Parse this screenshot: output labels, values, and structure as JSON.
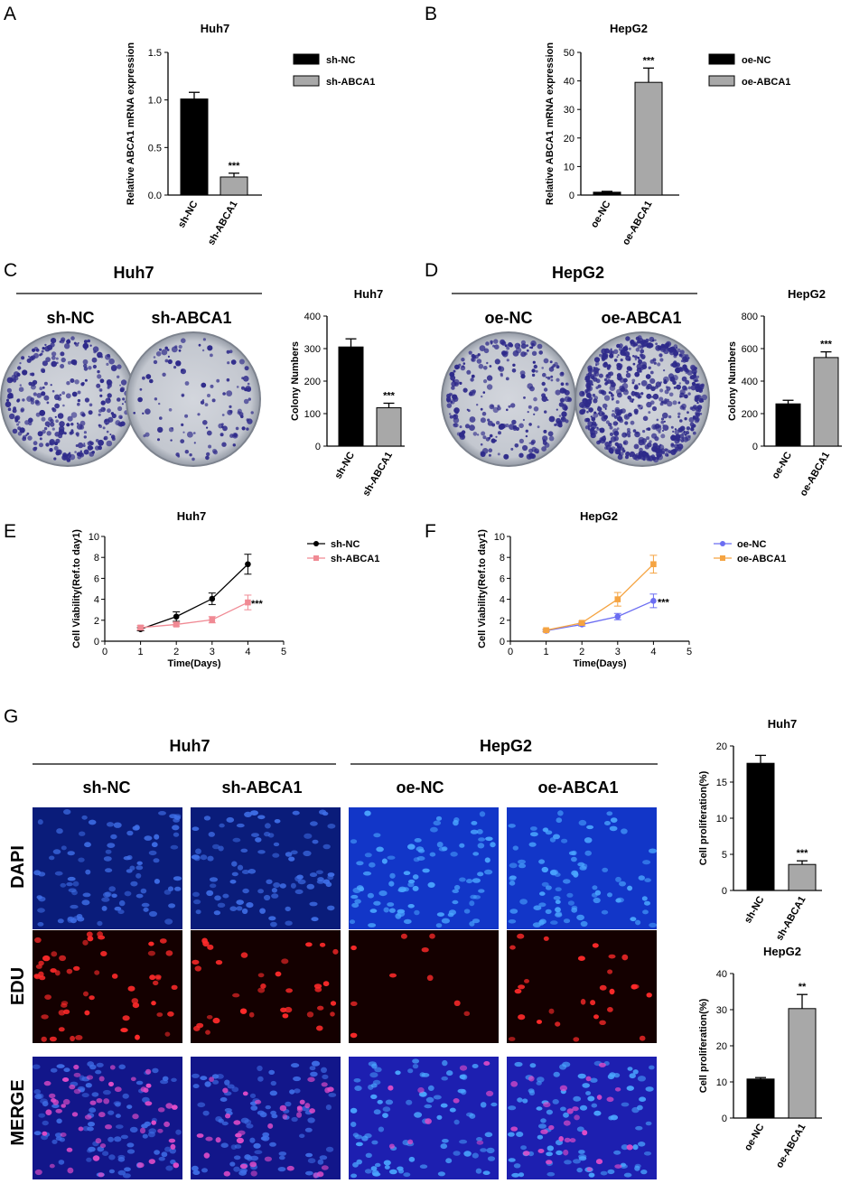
{
  "panel_labels": [
    "A",
    "B",
    "C",
    "D",
    "E",
    "F",
    "G"
  ],
  "colors": {
    "black_bar": "#000000",
    "gray_bar": "#a8a8a8",
    "pink": "#f08a94",
    "blue": "#6b6df2",
    "orange": "#f5a442",
    "dish_bg": "#c9ccd4",
    "colony": "#2e2a8a",
    "dapi_bg": "#0a1c7a",
    "edu_bg": "#140000",
    "merge_bg": "#12168a"
  },
  "chart_data": [
    {
      "id": "A",
      "type": "bar",
      "title": "Huh7",
      "ylabel": "Relative ABCA1 mRNA expression",
      "categories": [
        "sh-NC",
        "sh-ABCA1"
      ],
      "values": [
        1.01,
        0.19
      ],
      "errors": [
        0.07,
        0.04
      ],
      "ylim": [
        0,
        1.5
      ],
      "yticks": [
        "0.0",
        "0.5",
        "1.0",
        "1.5"
      ],
      "sig": [
        "",
        "***"
      ],
      "legend": [
        "sh-NC",
        "sh-ABCA1"
      ]
    },
    {
      "id": "B",
      "type": "bar",
      "title": "HepG2",
      "ylabel": "Relative ABCA1 mRNA expression",
      "categories": [
        "oe-NC",
        "oe-ABCA1"
      ],
      "values": [
        1.0,
        39.5
      ],
      "errors": [
        0.3,
        5.0
      ],
      "ylim": [
        0,
        50
      ],
      "yticks": [
        "0",
        "10",
        "20",
        "30",
        "40",
        "50"
      ],
      "sig": [
        "",
        "***"
      ],
      "legend": [
        "oe-NC",
        "oe-ABCA1"
      ]
    },
    {
      "id": "C",
      "type": "bar",
      "title": "Huh7",
      "ylabel": "Colony Numbers",
      "categories": [
        "sh-NC",
        "sh-ABCA1"
      ],
      "values": [
        305,
        118
      ],
      "errors": [
        25,
        14
      ],
      "ylim": [
        0,
        400
      ],
      "yticks": [
        "0",
        "100",
        "200",
        "300",
        "400"
      ],
      "sig": [
        "",
        "***"
      ],
      "legend": []
    },
    {
      "id": "D",
      "type": "bar",
      "title": "HepG2",
      "ylabel": "Colony Numbers",
      "categories": [
        "oe-NC",
        "oe-ABCA1"
      ],
      "values": [
        260,
        545
      ],
      "errors": [
        22,
        35
      ],
      "ylim": [
        0,
        800
      ],
      "yticks": [
        "0",
        "200",
        "400",
        "600",
        "800"
      ],
      "sig": [
        "",
        "***"
      ],
      "legend": []
    },
    {
      "id": "E",
      "type": "line",
      "title": "Huh7",
      "xlabel": "Time(Days)",
      "ylabel": "Cell Viability(Ref.to day1)",
      "x": [
        1,
        2,
        3,
        4
      ],
      "xlim": [
        0,
        5
      ],
      "ylim": [
        0,
        10
      ],
      "xticks": [
        "0",
        "1",
        "2",
        "3",
        "4",
        "5"
      ],
      "yticks": [
        "0",
        "2",
        "4",
        "6",
        "8",
        "10"
      ],
      "series": [
        {
          "name": "sh-NC",
          "values": [
            1.15,
            2.35,
            4.05,
            7.35
          ],
          "errors": [
            0.15,
            0.45,
            0.55,
            0.95
          ],
          "color": "#000000",
          "marker": "circle"
        },
        {
          "name": "sh-ABCA1",
          "values": [
            1.3,
            1.6,
            2.05,
            3.7
          ],
          "errors": [
            0.2,
            0.15,
            0.3,
            0.7
          ],
          "color": "#f08a94",
          "marker": "square"
        }
      ],
      "sig": "***"
    },
    {
      "id": "F",
      "type": "line",
      "title": "HepG2",
      "xlabel": "Time(Days)",
      "ylabel": "Cell Viability(Ref.to day1)",
      "x": [
        1,
        2,
        3,
        4
      ],
      "xlim": [
        0,
        5
      ],
      "ylim": [
        0,
        10
      ],
      "xticks": [
        "0",
        "1",
        "2",
        "3",
        "4",
        "5"
      ],
      "yticks": [
        "0",
        "2",
        "4",
        "6",
        "8",
        "10"
      ],
      "series": [
        {
          "name": "oe-NC",
          "values": [
            1.0,
            1.6,
            2.35,
            3.85
          ],
          "errors": [
            0.1,
            0.15,
            0.3,
            0.65
          ],
          "color": "#6b6df2",
          "marker": "circle"
        },
        {
          "name": "oe-ABCA1",
          "values": [
            1.05,
            1.75,
            4.0,
            7.35
          ],
          "errors": [
            0.1,
            0.15,
            0.65,
            0.85
          ],
          "color": "#f5a442",
          "marker": "square"
        }
      ],
      "sig": "***"
    },
    {
      "id": "G1",
      "type": "bar",
      "title": "Huh7",
      "ylabel": "Cell proliferation(%)",
      "categories": [
        "sh-NC",
        "sh-ABCA1"
      ],
      "values": [
        17.6,
        3.6
      ],
      "errors": [
        1.1,
        0.5
      ],
      "ylim": [
        0,
        20
      ],
      "yticks": [
        "0",
        "5",
        "10",
        "15",
        "20"
      ],
      "sig": [
        "",
        "***"
      ],
      "legend": []
    },
    {
      "id": "G2",
      "type": "bar",
      "title": "HepG2",
      "ylabel": "Cell proliferation(%)",
      "categories": [
        "oe-NC",
        "oe-ABCA1"
      ],
      "values": [
        10.8,
        30.3
      ],
      "errors": [
        0.4,
        3.9
      ],
      "ylim": [
        0,
        40
      ],
      "yticks": [
        "0",
        "10",
        "20",
        "30",
        "40"
      ],
      "sig": [
        "",
        "**"
      ],
      "legend": []
    }
  ],
  "colony_section": {
    "C": {
      "header": "Huh7",
      "labels": [
        "sh-NC",
        "sh-ABCA1"
      ],
      "density": [
        300,
        120
      ]
    },
    "D": {
      "header": "HepG2",
      "labels": [
        "oe-NC",
        "oe-ABCA1"
      ],
      "density": [
        260,
        620
      ]
    }
  },
  "edu_section": {
    "group_headers": [
      "Huh7",
      "HepG2"
    ],
    "column_labels": [
      "sh-NC",
      "sh-ABCA1",
      "oe-NC",
      "oe-ABCA1"
    ],
    "row_labels": [
      "DAPI",
      "EDU",
      "MERGE"
    ]
  }
}
